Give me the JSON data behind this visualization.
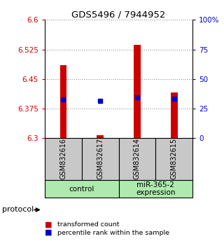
{
  "title": "GDS5496 / 7944952",
  "samples": [
    "GSM832616",
    "GSM832617",
    "GSM832614",
    "GSM832615"
  ],
  "bar_bottom": 6.3,
  "red_tops": [
    6.485,
    6.308,
    6.537,
    6.415
  ],
  "blue_values": [
    6.398,
    6.395,
    6.403,
    6.4
  ],
  "ylim": [
    6.3,
    6.6
  ],
  "y_ticks_left": [
    6.3,
    6.375,
    6.45,
    6.525,
    6.6
  ],
  "y_ticks_right": [
    0,
    25,
    50,
    75,
    100
  ],
  "left_color": "#cc0000",
  "right_color": "#0000cc",
  "bar_color": "#cc0000",
  "blue_marker_color": "#0000cc",
  "xlabel_area_color": "#c8c8c8",
  "group_colors": [
    "#aeeaae",
    "#aeeaae"
  ],
  "group_labels": [
    "control",
    "miR-365-2\nexpression"
  ],
  "group_ranges": [
    [
      0,
      1
    ],
    [
      2,
      3
    ]
  ],
  "legend_red_label": "transformed count",
  "legend_blue_label": "percentile rank within the sample",
  "bar_width": 0.18,
  "protocol_label": "protocol"
}
